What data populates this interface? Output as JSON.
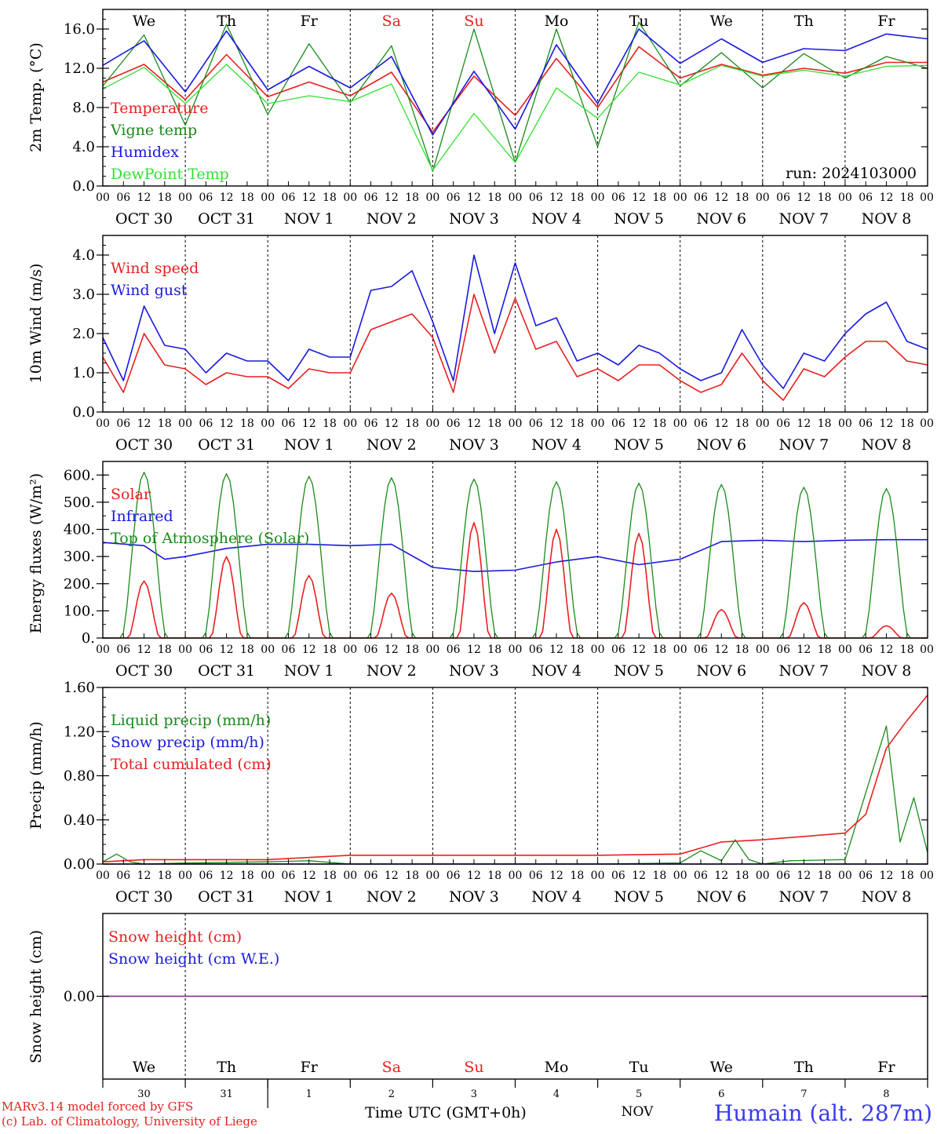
{
  "meta": {
    "run_label": "run: 2024103000",
    "model_credit": "MARv3.14 model forced by GFS",
    "lab_credit": "(c) Lab. of Climatology, University of Liege",
    "time_label": "Time UTC (GMT+0h)",
    "month_label": "NOV",
    "station": "Humain (alt. 287m)"
  },
  "colors": {
    "red": "#e82020",
    "green": "#1a8a1a",
    "blue": "#1a1ae0",
    "light_green": "#33e033",
    "weekend": "#e82020",
    "purple": "#8a3a9a"
  },
  "days": {
    "weekdays": [
      "We",
      "Th",
      "Fr",
      "Sa",
      "Su",
      "Mo",
      "Tu",
      "We",
      "Th",
      "Fr"
    ],
    "weekend_flags": [
      false,
      false,
      false,
      true,
      true,
      false,
      false,
      false,
      false,
      false
    ],
    "date_labels": [
      "OCT 30",
      "OCT 31",
      "NOV  1",
      "NOV  2",
      "NOV  3",
      "NOV  4",
      "NOV  5",
      "NOV  6",
      "NOV  7",
      "NOV  8"
    ],
    "day_numbers": [
      "30",
      "31",
      "1",
      "2",
      "3",
      "4",
      "5",
      "6",
      "7",
      "8"
    ],
    "hour_ticks": [
      "00",
      "06",
      "12",
      "18"
    ],
    "end_tick": "00"
  },
  "chart_data": [
    {
      "type": "line",
      "ylabel": "2m Temp. (°C)",
      "ylim": [
        0,
        18
      ],
      "yticks": [
        "0.0",
        "4.0",
        "8.0",
        "12.0",
        "16.0"
      ],
      "x_unit": "hours since 2024-10-30 00 UTC",
      "x": [
        0,
        12,
        24,
        36,
        48,
        60,
        72,
        84,
        96,
        108,
        120,
        132,
        144,
        156,
        168,
        180,
        192,
        204,
        216,
        228,
        240
      ],
      "series": [
        {
          "name": "Temperature",
          "color": "red",
          "values": [
            10.6,
            12.4,
            8.8,
            13.4,
            9.1,
            10.6,
            9.2,
            11.6,
            5.5,
            11.2,
            7.2,
            13.0,
            8.0,
            14.2,
            11.0,
            12.4,
            11.3,
            12.0,
            11.5,
            12.6,
            12.6
          ]
        },
        {
          "name": "Vigne temp",
          "color": "green",
          "values": [
            10.2,
            15.4,
            6.2,
            16.5,
            7.3,
            14.5,
            8.5,
            14.3,
            1.5,
            16.0,
            2.4,
            16.0,
            4.0,
            16.7,
            10.2,
            13.6,
            10.0,
            13.5,
            11.0,
            13.2,
            12.0
          ]
        },
        {
          "name": "Humidex",
          "color": "blue",
          "values": [
            12.3,
            14.8,
            9.6,
            15.8,
            9.8,
            12.2,
            10.0,
            13.2,
            5.2,
            11.7,
            5.8,
            14.4,
            8.4,
            16.0,
            12.5,
            15.0,
            12.6,
            14.0,
            13.8,
            15.5,
            15.0
          ]
        },
        {
          "name": "DewPoint Temp",
          "color": "light_green",
          "values": [
            9.9,
            12.1,
            8.4,
            12.4,
            8.4,
            9.2,
            8.6,
            10.4,
            1.6,
            7.4,
            2.4,
            10.0,
            6.9,
            11.6,
            10.3,
            12.3,
            11.2,
            11.8,
            11.2,
            12.2,
            12.3
          ]
        }
      ]
    },
    {
      "type": "line",
      "ylabel": "10m Wind (m/s)",
      "ylim": [
        0,
        4.5
      ],
      "yticks": [
        "0.0",
        "1.0",
        "2.0",
        "3.0",
        "4.0"
      ],
      "x_unit": "hours since 2024-10-30 00 UTC",
      "x": [
        0,
        6,
        12,
        18,
        24,
        30,
        36,
        42,
        48,
        54,
        60,
        66,
        72,
        78,
        84,
        90,
        96,
        102,
        108,
        114,
        120,
        126,
        132,
        138,
        144,
        150,
        156,
        162,
        168,
        174,
        180,
        186,
        192,
        198,
        204,
        210,
        216,
        222,
        228,
        234,
        240
      ],
      "series": [
        {
          "name": "Wind speed",
          "color": "red",
          "values": [
            1.4,
            0.5,
            2.0,
            1.2,
            1.1,
            0.7,
            1.0,
            0.9,
            0.9,
            0.6,
            1.1,
            1.0,
            1.0,
            2.1,
            2.3,
            2.5,
            1.9,
            0.5,
            3.0,
            1.5,
            2.9,
            1.6,
            1.8,
            0.9,
            1.1,
            0.8,
            1.2,
            1.2,
            0.8,
            0.5,
            0.7,
            1.5,
            0.8,
            0.3,
            1.1,
            0.9,
            1.4,
            1.8,
            1.8,
            1.3,
            1.2
          ]
        },
        {
          "name": "Wind gust",
          "color": "blue",
          "values": [
            1.9,
            0.8,
            2.7,
            1.7,
            1.6,
            1.0,
            1.5,
            1.3,
            1.3,
            0.8,
            1.6,
            1.4,
            1.4,
            3.1,
            3.2,
            3.6,
            2.3,
            0.8,
            4.0,
            2.0,
            3.8,
            2.2,
            2.4,
            1.3,
            1.5,
            1.2,
            1.7,
            1.5,
            1.1,
            0.8,
            1.0,
            2.1,
            1.2,
            0.6,
            1.5,
            1.3,
            2.0,
            2.5,
            2.8,
            1.8,
            1.6
          ]
        }
      ]
    },
    {
      "type": "line",
      "ylabel": "Energy fluxes (W/m²)",
      "ylim": [
        0,
        650
      ],
      "yticks": [
        "0.",
        "100.",
        "200.",
        "300.",
        "400.",
        "500.",
        "600."
      ],
      "series": [
        {
          "name": "Solar",
          "color": "red",
          "day_peaks": [
            210,
            300,
            230,
            165,
            425,
            400,
            385,
            105,
            130,
            45
          ]
        },
        {
          "name": "Infrared",
          "color": "blue",
          "x": [
            0,
            12,
            18,
            24,
            36,
            48,
            60,
            72,
            84,
            96,
            108,
            120,
            132,
            144,
            156,
            168,
            180,
            192,
            204,
            216,
            228,
            240
          ],
          "values": [
            352,
            340,
            290,
            300,
            330,
            345,
            345,
            340,
            345,
            260,
            245,
            250,
            280,
            300,
            270,
            290,
            355,
            360,
            355,
            360,
            362,
            362
          ]
        },
        {
          "name": "Top of Atmosphere (Solar)",
          "color": "green",
          "day_peaks": [
            610,
            605,
            595,
            590,
            585,
            575,
            570,
            565,
            555,
            550
          ]
        }
      ]
    },
    {
      "type": "line",
      "ylabel": "Precip (mm/h)",
      "ylim": [
        0,
        1.6
      ],
      "yticks": [
        "0.00",
        "0.40",
        "0.80",
        "1.20",
        "1.60"
      ],
      "x_unit": "hours since 2024-10-30 00 UTC",
      "series": [
        {
          "name": "Liquid precip (mm/h)",
          "color": "green",
          "x": [
            0,
            4,
            8,
            12,
            24,
            48,
            60,
            72,
            96,
            120,
            144,
            168,
            174,
            180,
            184,
            188,
            192,
            200,
            216,
            228,
            232,
            236,
            240
          ],
          "values": [
            0.02,
            0.09,
            0.02,
            0.0,
            0.01,
            0.02,
            0.03,
            0.0,
            0.0,
            0.0,
            0.0,
            0.01,
            0.12,
            0.03,
            0.22,
            0.04,
            0.0,
            0.03,
            0.04,
            1.25,
            0.2,
            0.6,
            0.1
          ]
        },
        {
          "name": "Snow precip (mm/h)",
          "color": "blue",
          "x": [
            0,
            240
          ],
          "values": [
            0.0,
            0.0
          ]
        },
        {
          "name": "Total cumulated (cm)",
          "color": "red",
          "x": [
            0,
            12,
            48,
            72,
            96,
            120,
            144,
            168,
            180,
            192,
            216,
            222,
            228,
            234,
            240
          ],
          "values": [
            0.02,
            0.04,
            0.04,
            0.08,
            0.08,
            0.08,
            0.08,
            0.09,
            0.2,
            0.22,
            0.28,
            0.45,
            1.05,
            1.3,
            1.53
          ]
        }
      ]
    },
    {
      "type": "line",
      "ylabel": "Snow height (cm)",
      "ylim": [
        -1,
        1
      ],
      "yticks": [
        "0.00"
      ],
      "series": [
        {
          "name": "Snow height (cm)",
          "color": "red",
          "x": [
            0,
            240
          ],
          "values": [
            0.0,
            0.0
          ]
        },
        {
          "name": "Snow height (cm W.E.)",
          "color": "blue",
          "x": [
            0,
            240
          ],
          "values": [
            0.0,
            0.0
          ]
        }
      ]
    }
  ]
}
